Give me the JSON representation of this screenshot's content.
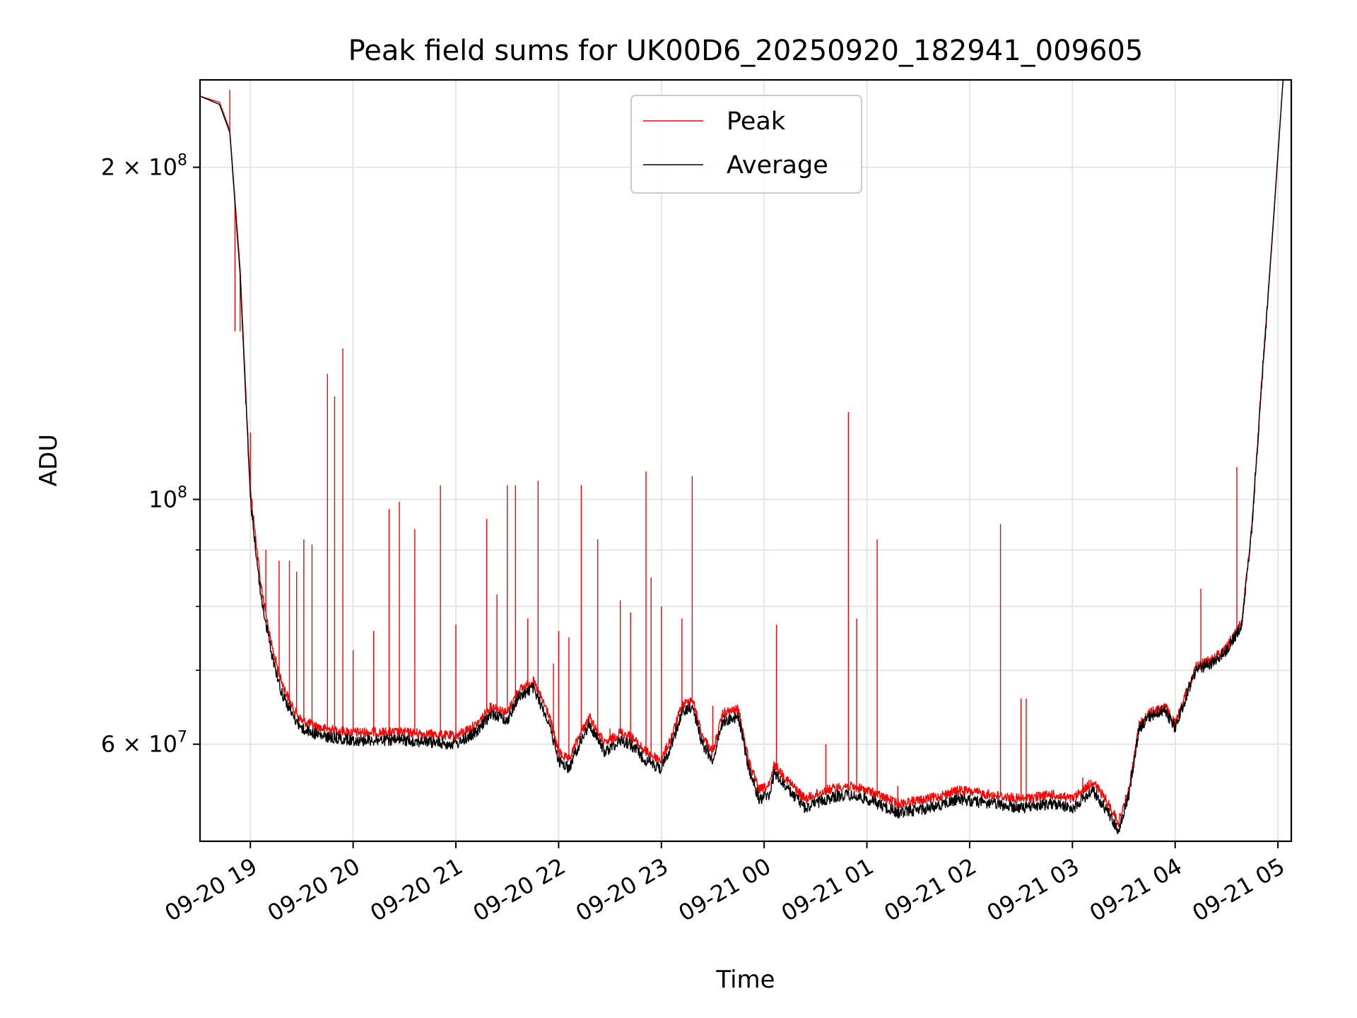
{
  "chart_data": {
    "type": "line",
    "title": "Peak field sums for UK00D6_20250920_182941_009605",
    "xlabel": "Time",
    "ylabel": "ADU",
    "yscale": "log",
    "grid": true,
    "legend_position": "upper center",
    "xlim": [
      -0.49,
      10.13
    ],
    "ylim": [
      49000000,
      240000000
    ],
    "x_unit": "hours after 09-20 19:00",
    "x_ticks": [
      {
        "value": 0,
        "label": "09-20 19"
      },
      {
        "value": 1,
        "label": "09-20 20"
      },
      {
        "value": 2,
        "label": "09-20 21"
      },
      {
        "value": 3,
        "label": "09-20 22"
      },
      {
        "value": 4,
        "label": "09-20 23"
      },
      {
        "value": 5,
        "label": "09-21 00"
      },
      {
        "value": 6,
        "label": "09-21 01"
      },
      {
        "value": 7,
        "label": "09-21 02"
      },
      {
        "value": 8,
        "label": "09-21 03"
      },
      {
        "value": 9,
        "label": "09-21 04"
      },
      {
        "value": 10,
        "label": "09-21 05"
      }
    ],
    "y_major_ticks": [
      {
        "value": 60000000,
        "base": "6 × 10",
        "exp": "7"
      },
      {
        "value": 100000000,
        "base": "10",
        "exp": "8"
      },
      {
        "value": 200000000,
        "base": "2 × 10",
        "exp": "8"
      }
    ],
    "y_minor_ticks": [
      70000000,
      80000000,
      90000000
    ],
    "series": [
      {
        "name": "Average",
        "color": "#000000",
        "points": [
          [
            -0.49,
            232000000
          ],
          [
            -0.3,
            228000000
          ],
          [
            -0.2,
            215000000
          ],
          [
            -0.1,
            160000000
          ],
          [
            0.0,
            100000000
          ],
          [
            0.1,
            82000000
          ],
          [
            0.2,
            73000000
          ],
          [
            0.3,
            67000000
          ],
          [
            0.4,
            64000000
          ],
          [
            0.5,
            62000000
          ],
          [
            0.7,
            61000000
          ],
          [
            1.0,
            60500000
          ],
          [
            1.5,
            60500000
          ],
          [
            2.0,
            60000000
          ],
          [
            2.2,
            61500000
          ],
          [
            2.35,
            64000000
          ],
          [
            2.5,
            63000000
          ],
          [
            2.6,
            66000000
          ],
          [
            2.75,
            67500000
          ],
          [
            2.9,
            63000000
          ],
          [
            3.0,
            58000000
          ],
          [
            3.1,
            57000000
          ],
          [
            3.2,
            60000000
          ],
          [
            3.3,
            62500000
          ],
          [
            3.45,
            59000000
          ],
          [
            3.6,
            60500000
          ],
          [
            3.7,
            60000000
          ],
          [
            3.85,
            58000000
          ],
          [
            4.0,
            57000000
          ],
          [
            4.1,
            60000000
          ],
          [
            4.2,
            64000000
          ],
          [
            4.3,
            65000000
          ],
          [
            4.4,
            60000000
          ],
          [
            4.5,
            58000000
          ],
          [
            4.6,
            63000000
          ],
          [
            4.75,
            63500000
          ],
          [
            4.85,
            57000000
          ],
          [
            4.95,
            53500000
          ],
          [
            5.05,
            54000000
          ],
          [
            5.1,
            56500000
          ],
          [
            5.2,
            55000000
          ],
          [
            5.4,
            52500000
          ],
          [
            5.6,
            53500000
          ],
          [
            5.8,
            54000000
          ],
          [
            6.0,
            53500000
          ],
          [
            6.3,
            52000000
          ],
          [
            6.6,
            52500000
          ],
          [
            6.9,
            53500000
          ],
          [
            7.2,
            53000000
          ],
          [
            7.5,
            52500000
          ],
          [
            7.8,
            53000000
          ],
          [
            8.0,
            52500000
          ],
          [
            8.2,
            54500000
          ],
          [
            8.35,
            52000000
          ],
          [
            8.45,
            50000000
          ],
          [
            8.55,
            54000000
          ],
          [
            8.65,
            62000000
          ],
          [
            8.75,
            63500000
          ],
          [
            8.9,
            64500000
          ],
          [
            9.0,
            62000000
          ],
          [
            9.1,
            66000000
          ],
          [
            9.2,
            70000000
          ],
          [
            9.35,
            71000000
          ],
          [
            9.5,
            73000000
          ],
          [
            9.65,
            77000000
          ],
          [
            9.75,
            95000000
          ],
          [
            9.85,
            130000000
          ],
          [
            9.95,
            175000000
          ],
          [
            10.05,
            240000000
          ]
        ]
      },
      {
        "name": "Peak",
        "color": "#ff0000",
        "points": [
          [
            -0.49,
            232000000
          ],
          [
            -0.3,
            229000000
          ],
          [
            -0.2,
            216000000
          ],
          [
            -0.1,
            162000000
          ],
          [
            0.0,
            102000000
          ],
          [
            0.1,
            84000000
          ],
          [
            0.2,
            74000000
          ],
          [
            0.3,
            68500000
          ],
          [
            0.4,
            65000000
          ],
          [
            0.5,
            63000000
          ],
          [
            0.7,
            62000000
          ],
          [
            1.0,
            61500000
          ],
          [
            1.5,
            61500000
          ],
          [
            2.0,
            61000000
          ],
          [
            2.2,
            62500000
          ],
          [
            2.35,
            65000000
          ],
          [
            2.5,
            64000000
          ],
          [
            2.6,
            67000000
          ],
          [
            2.75,
            68500000
          ],
          [
            2.9,
            64000000
          ],
          [
            3.0,
            59000000
          ],
          [
            3.1,
            58000000
          ],
          [
            3.2,
            61000000
          ],
          [
            3.3,
            63500000
          ],
          [
            3.45,
            60000000
          ],
          [
            3.6,
            61500000
          ],
          [
            3.7,
            61000000
          ],
          [
            3.85,
            59000000
          ],
          [
            4.0,
            58000000
          ],
          [
            4.1,
            61000000
          ],
          [
            4.2,
            65000000
          ],
          [
            4.3,
            66000000
          ],
          [
            4.4,
            61000000
          ],
          [
            4.5,
            59000000
          ],
          [
            4.6,
            64000000
          ],
          [
            4.75,
            64500000
          ],
          [
            4.85,
            58000000
          ],
          [
            4.95,
            54500000
          ],
          [
            5.05,
            55000000
          ],
          [
            5.1,
            57500000
          ],
          [
            5.2,
            56000000
          ],
          [
            5.4,
            53500000
          ],
          [
            5.6,
            54500000
          ],
          [
            5.8,
            55000000
          ],
          [
            6.0,
            54500000
          ],
          [
            6.3,
            53000000
          ],
          [
            6.6,
            53500000
          ],
          [
            6.9,
            54500000
          ],
          [
            7.2,
            54000000
          ],
          [
            7.5,
            53500000
          ],
          [
            7.8,
            54000000
          ],
          [
            8.0,
            53500000
          ],
          [
            8.2,
            55500000
          ],
          [
            8.35,
            53000000
          ],
          [
            8.45,
            51000000
          ],
          [
            8.55,
            54500000
          ],
          [
            8.65,
            62500000
          ],
          [
            8.75,
            64000000
          ],
          [
            8.9,
            65000000
          ],
          [
            9.0,
            62500000
          ],
          [
            9.1,
            66500000
          ],
          [
            9.2,
            70500000
          ],
          [
            9.35,
            71500000
          ],
          [
            9.5,
            73500000
          ],
          [
            9.65,
            77500000
          ],
          [
            9.75,
            96000000
          ],
          [
            9.85,
            131000000
          ],
          [
            9.95,
            176000000
          ],
          [
            10.05,
            240000000
          ]
        ],
        "spikes": [
          [
            -0.2,
            235000000
          ],
          [
            -0.15,
            142000000
          ],
          [
            -0.1,
            142000000
          ],
          [
            0.0,
            115000000
          ],
          [
            0.15,
            90000000
          ],
          [
            0.28,
            88000000
          ],
          [
            0.38,
            88000000
          ],
          [
            0.45,
            86000000
          ],
          [
            0.52,
            92000000
          ],
          [
            0.6,
            91000000
          ],
          [
            0.75,
            130000000
          ],
          [
            0.82,
            124000000
          ],
          [
            0.9,
            137000000
          ],
          [
            1.0,
            73000000
          ],
          [
            1.2,
            76000000
          ],
          [
            1.35,
            98000000
          ],
          [
            1.45,
            99500000
          ],
          [
            1.6,
            94000000
          ],
          [
            1.85,
            103000000
          ],
          [
            2.0,
            77000000
          ],
          [
            2.3,
            96000000
          ],
          [
            2.4,
            82000000
          ],
          [
            2.5,
            103000000
          ],
          [
            2.58,
            103000000
          ],
          [
            2.7,
            78000000
          ],
          [
            2.8,
            104000000
          ],
          [
            2.95,
            71000000
          ],
          [
            3.0,
            76000000
          ],
          [
            3.1,
            75000000
          ],
          [
            3.22,
            103000000
          ],
          [
            3.38,
            92000000
          ],
          [
            3.5,
            62000000
          ],
          [
            3.6,
            81000000
          ],
          [
            3.7,
            79000000
          ],
          [
            3.85,
            106000000
          ],
          [
            3.9,
            85000000
          ],
          [
            4.0,
            80000000
          ],
          [
            4.2,
            78000000
          ],
          [
            4.3,
            105000000
          ],
          [
            4.5,
            65000000
          ],
          [
            5.12,
            77000000
          ],
          [
            5.6,
            60000000
          ],
          [
            5.82,
            120000000
          ],
          [
            5.9,
            78000000
          ],
          [
            6.1,
            92000000
          ],
          [
            6.3,
            55000000
          ],
          [
            7.3,
            95000000
          ],
          [
            7.5,
            66000000
          ],
          [
            7.55,
            66000000
          ],
          [
            8.1,
            56000000
          ],
          [
            9.25,
            83000000
          ],
          [
            9.6,
            107000000
          ]
        ]
      }
    ]
  }
}
